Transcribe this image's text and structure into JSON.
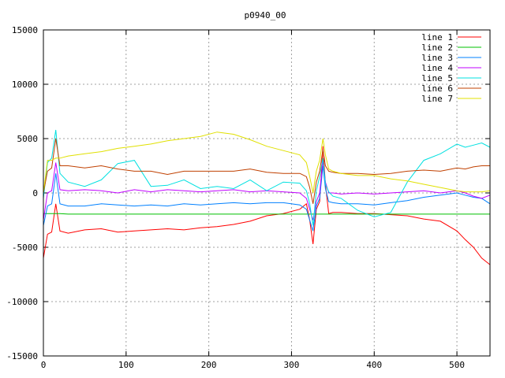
{
  "chart_data": {
    "type": "line",
    "title": "p0940_00",
    "xlabel": "",
    "ylabel": "",
    "xlim": [
      0,
      540
    ],
    "ylim": [
      -15000,
      15000
    ],
    "x_ticks": [
      0,
      100,
      200,
      300,
      400,
      500
    ],
    "y_ticks": [
      -15000,
      -10000,
      -5000,
      0,
      5000,
      10000,
      15000
    ],
    "grid": true,
    "legend_position": "top-right",
    "x": [
      0,
      5,
      10,
      15,
      20,
      30,
      50,
      70,
      90,
      110,
      130,
      150,
      170,
      190,
      210,
      230,
      250,
      270,
      290,
      310,
      318,
      322,
      326,
      330,
      334,
      338,
      341,
      345,
      350,
      360,
      380,
      400,
      420,
      440,
      460,
      480,
      500,
      510,
      520,
      530,
      540
    ],
    "series": [
      {
        "name": "line 1",
        "color": "#ff0000",
        "values": [
          -6000,
          -3800,
          -3600,
          -1000,
          -3500,
          -3700,
          -3400,
          -3300,
          -3600,
          -3500,
          -3400,
          -3300,
          -3400,
          -3200,
          -3100,
          -2900,
          -2600,
          -2100,
          -1900,
          -1500,
          -1000,
          -2500,
          -4700,
          -1500,
          -800,
          4300,
          800,
          -1900,
          -1800,
          -1800,
          -1900,
          -1900,
          -2000,
          -2100,
          -2400,
          -2600,
          -3500,
          -4300,
          -5000,
          -6000,
          -6600
        ]
      },
      {
        "name": "line 2",
        "color": "#00c000",
        "values": [
          -1900,
          -1900,
          -1900,
          -1900,
          -1900,
          -1950,
          -1950,
          -1950,
          -1950,
          -1950,
          -1950,
          -1950,
          -1950,
          -1950,
          -1950,
          -1950,
          -1950,
          -1950,
          -1950,
          -1950,
          -1950,
          -1950,
          -1950,
          -1950,
          -1950,
          -1950,
          -1950,
          -1950,
          -1950,
          -1950,
          -1950,
          -1950,
          -1950,
          -1950,
          -1950,
          -1950,
          -1950,
          -1950,
          -1950,
          -1950,
          -1950
        ]
      },
      {
        "name": "line 3",
        "color": "#0080ff",
        "values": [
          -3000,
          -1200,
          -1000,
          1800,
          -1000,
          -1200,
          -1200,
          -1000,
          -1100,
          -1200,
          -1100,
          -1200,
          -1000,
          -1100,
          -1000,
          -900,
          -1000,
          -900,
          -900,
          -1100,
          -1500,
          -2500,
          -3500,
          -1200,
          -500,
          2500,
          400,
          -800,
          -900,
          -1000,
          -1000,
          -1100,
          -900,
          -700,
          -400,
          -200,
          0,
          -200,
          -400,
          -500,
          -1000
        ]
      },
      {
        "name": "line 4",
        "color": "#c000ff",
        "values": [
          -2500,
          0,
          200,
          2800,
          300,
          200,
          300,
          200,
          0,
          300,
          100,
          300,
          200,
          100,
          200,
          300,
          100,
          200,
          100,
          0,
          -500,
          -1500,
          -2500,
          -800,
          0,
          3000,
          1000,
          0,
          0,
          -100,
          0,
          -100,
          0,
          100,
          200,
          0,
          200,
          0,
          -300,
          -500,
          -200
        ]
      },
      {
        "name": "line 5",
        "color": "#00e0e0",
        "values": [
          -500,
          2800,
          3200,
          5800,
          1800,
          1000,
          600,
          1200,
          2700,
          3000,
          600,
          700,
          1200,
          400,
          600,
          400,
          1200,
          200,
          1000,
          900,
          200,
          -1000,
          -3000,
          200,
          1500,
          3200,
          800,
          100,
          -300,
          -500,
          -1600,
          -2200,
          -1800,
          1000,
          3000,
          3600,
          4500,
          4200,
          4400,
          4600,
          4200
        ]
      },
      {
        "name": "line 6",
        "color": "#c04000",
        "values": [
          0,
          2000,
          2300,
          5000,
          2500,
          2500,
          2300,
          2500,
          2200,
          2000,
          2000,
          1700,
          2000,
          2000,
          2000,
          2000,
          2200,
          1900,
          1800,
          1800,
          1500,
          500,
          -1000,
          1000,
          2000,
          4000,
          2500,
          2000,
          1900,
          1800,
          1800,
          1700,
          1800,
          2000,
          2100,
          2000,
          2300,
          2200,
          2400,
          2500,
          2500
        ]
      },
      {
        "name": "line 7",
        "color": "#e0e000",
        "values": [
          0,
          3000,
          3000,
          3200,
          3200,
          3400,
          3600,
          3800,
          4100,
          4300,
          4500,
          4800,
          5000,
          5200,
          5600,
          5400,
          4900,
          4300,
          3900,
          3500,
          2800,
          1500,
          0,
          2000,
          3000,
          5000,
          3500,
          2200,
          2000,
          1800,
          1600,
          1600,
          1300,
          1100,
          800,
          500,
          200,
          100,
          100,
          100,
          200
        ]
      }
    ]
  }
}
